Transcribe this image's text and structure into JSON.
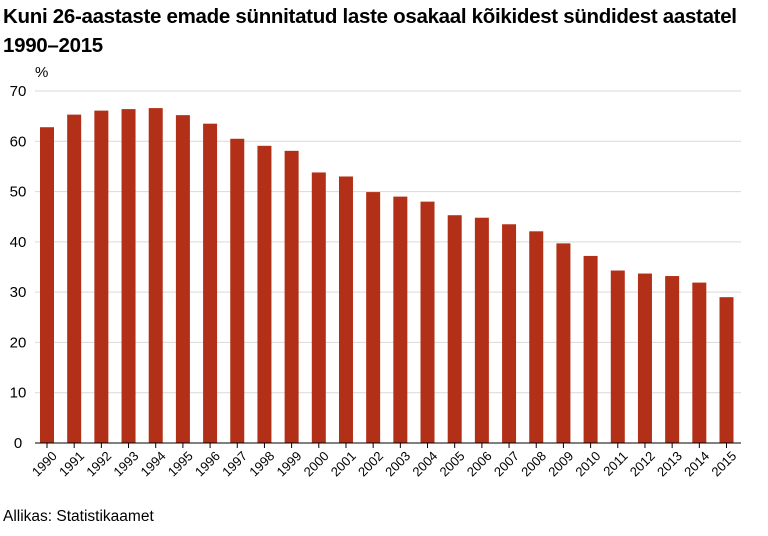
{
  "chart_data": {
    "type": "bar",
    "title": "Kuni 26-aastaste emade sünnitatud laste osakaal kõikidest sündidest aastatel 1990–2015",
    "ylabel": "%",
    "xlabel": "",
    "ylim": [
      0,
      70
    ],
    "yticks": [
      0,
      10,
      20,
      30,
      40,
      50,
      60,
      70
    ],
    "grid": true,
    "bar_color": "#b33018",
    "categories": [
      "1990",
      "1991",
      "1992",
      "1993",
      "1994",
      "1995",
      "1996",
      "1997",
      "1998",
      "1999",
      "2000",
      "2001",
      "2002",
      "2003",
      "2004",
      "2005",
      "2006",
      "2007",
      "2008",
      "2009",
      "2010",
      "2011",
      "2012",
      "2013",
      "2014",
      "2015"
    ],
    "values": [
      62.8,
      65.3,
      66.1,
      66.4,
      66.6,
      65.2,
      63.5,
      60.5,
      59.1,
      58.1,
      53.8,
      53.0,
      49.9,
      49.0,
      48.0,
      45.3,
      44.8,
      43.5,
      42.1,
      39.7,
      37.2,
      34.3,
      33.7,
      33.2,
      31.9,
      29.0
    ],
    "source": "Allikas: Statistikaamet"
  }
}
